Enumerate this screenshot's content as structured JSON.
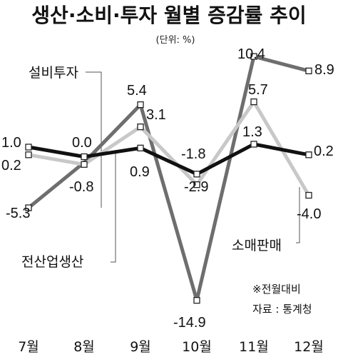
{
  "chart_data": {
    "type": "line",
    "title": "생산·소비·투자 월별 증감률 추이",
    "unit": "(단위: %)",
    "categories": [
      "7월",
      "8월",
      "9월",
      "10월",
      "11월",
      "12월"
    ],
    "series": [
      {
        "name": "전산업생산",
        "values": [
          1.0,
          0.0,
          0.9,
          -1.8,
          1.3,
          0.2
        ],
        "color": "#111111"
      },
      {
        "name": "소매판매",
        "values": [
          0.2,
          -0.8,
          3.1,
          -2.9,
          5.7,
          -4.0
        ],
        "color": "#c8c8c8"
      },
      {
        "name": "설비투자",
        "values": [
          -5.3,
          null,
          5.4,
          -14.9,
          10.4,
          8.9
        ],
        "color": "#6e6e6e"
      }
    ],
    "data_labels": {
      "전산업생산": [
        "1.0",
        "0.0",
        "0.9",
        "-1.8",
        "1.3",
        "0.2"
      ],
      "소매판매": [
        "0.2",
        "-0.8",
        "3.1",
        "-2.9",
        "5.7",
        "-4.0"
      ],
      "설비투자": [
        "-5.3",
        "",
        "5.4",
        "-14.9",
        "10.4",
        "8.9"
      ]
    },
    "ylim": [
      -16,
      12
    ],
    "grid": false,
    "legend": "inline labels"
  },
  "notes": {
    "basis": "※전월대비",
    "source": "자료 : 통계청"
  }
}
